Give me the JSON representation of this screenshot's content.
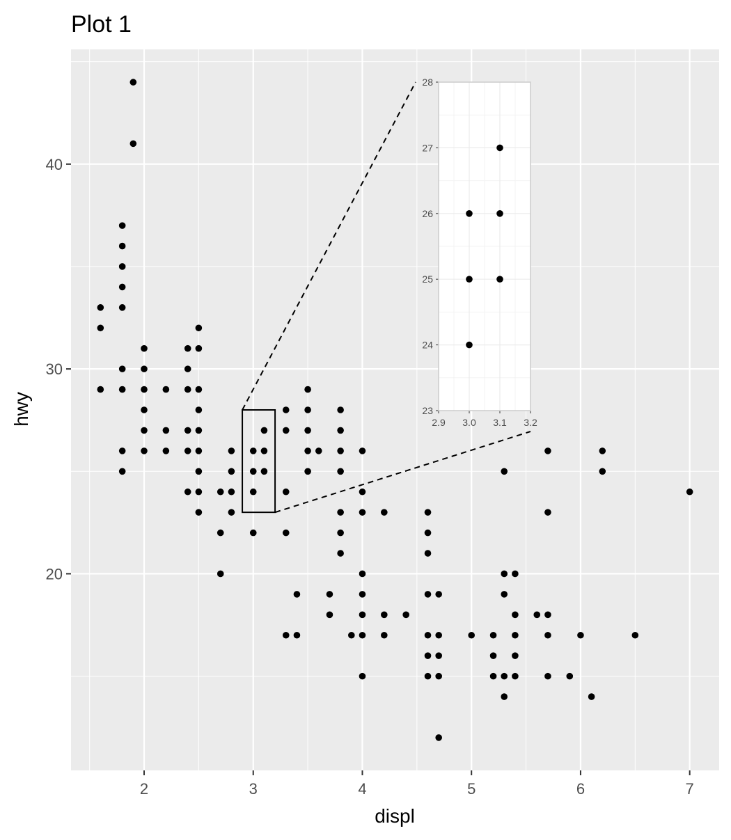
{
  "chart_data": {
    "type": "scatter",
    "title": "Plot 1",
    "xlabel": "displ",
    "ylabel": "hwy",
    "xlim": [
      1.33,
      7.27
    ],
    "ylim": [
      10.4,
      45.6
    ],
    "x_ticks": [
      2,
      3,
      4,
      5,
      6,
      7
    ],
    "y_ticks": [
      20,
      30,
      40
    ],
    "grid": true,
    "points": [
      [
        1.6,
        33
      ],
      [
        1.6,
        32
      ],
      [
        1.6,
        29
      ],
      [
        1.8,
        29
      ],
      [
        1.8,
        26
      ],
      [
        1.8,
        25
      ],
      [
        1.8,
        30
      ],
      [
        1.8,
        33
      ],
      [
        1.8,
        34
      ],
      [
        1.8,
        35
      ],
      [
        1.8,
        36
      ],
      [
        1.8,
        37
      ],
      [
        1.9,
        44
      ],
      [
        1.9,
        41
      ],
      [
        2.0,
        31
      ],
      [
        2.0,
        30
      ],
      [
        2.0,
        29
      ],
      [
        2.0,
        28
      ],
      [
        2.0,
        27
      ],
      [
        2.0,
        26
      ],
      [
        2.2,
        29
      ],
      [
        2.2,
        27
      ],
      [
        2.2,
        26
      ],
      [
        2.4,
        31
      ],
      [
        2.4,
        30
      ],
      [
        2.4,
        29
      ],
      [
        2.4,
        27
      ],
      [
        2.4,
        26
      ],
      [
        2.4,
        24
      ],
      [
        2.5,
        32
      ],
      [
        2.5,
        31
      ],
      [
        2.5,
        29
      ],
      [
        2.5,
        28
      ],
      [
        2.5,
        27
      ],
      [
        2.5,
        26
      ],
      [
        2.5,
        25
      ],
      [
        2.5,
        24
      ],
      [
        2.5,
        23
      ],
      [
        2.7,
        24
      ],
      [
        2.7,
        22
      ],
      [
        2.7,
        20
      ],
      [
        2.8,
        26
      ],
      [
        2.8,
        25
      ],
      [
        2.8,
        24
      ],
      [
        2.8,
        23
      ],
      [
        3.0,
        26
      ],
      [
        3.0,
        25
      ],
      [
        3.0,
        24
      ],
      [
        3.0,
        22
      ],
      [
        3.1,
        27
      ],
      [
        3.1,
        26
      ],
      [
        3.1,
        25
      ],
      [
        3.3,
        28
      ],
      [
        3.3,
        27
      ],
      [
        3.3,
        24
      ],
      [
        3.3,
        22
      ],
      [
        3.3,
        17
      ],
      [
        3.4,
        19
      ],
      [
        3.4,
        17
      ],
      [
        3.5,
        29
      ],
      [
        3.5,
        28
      ],
      [
        3.5,
        27
      ],
      [
        3.5,
        26
      ],
      [
        3.5,
        25
      ],
      [
        3.6,
        26
      ],
      [
        3.7,
        19
      ],
      [
        3.7,
        18
      ],
      [
        3.8,
        28
      ],
      [
        3.8,
        27
      ],
      [
        3.8,
        26
      ],
      [
        3.8,
        25
      ],
      [
        3.8,
        23
      ],
      [
        3.8,
        22
      ],
      [
        3.8,
        21
      ],
      [
        3.9,
        17
      ],
      [
        4.0,
        26
      ],
      [
        4.0,
        24
      ],
      [
        4.0,
        23
      ],
      [
        4.0,
        20
      ],
      [
        4.0,
        19
      ],
      [
        4.0,
        18
      ],
      [
        4.0,
        17
      ],
      [
        4.0,
        15
      ],
      [
        4.2,
        23
      ],
      [
        4.2,
        18
      ],
      [
        4.2,
        17
      ],
      [
        4.4,
        18
      ],
      [
        4.6,
        23
      ],
      [
        4.6,
        22
      ],
      [
        4.6,
        21
      ],
      [
        4.6,
        19
      ],
      [
        4.6,
        17
      ],
      [
        4.6,
        16
      ],
      [
        4.6,
        15
      ],
      [
        4.7,
        19
      ],
      [
        4.7,
        17
      ],
      [
        4.7,
        16
      ],
      [
        4.7,
        15
      ],
      [
        4.7,
        12
      ],
      [
        5.0,
        17
      ],
      [
        5.2,
        17
      ],
      [
        5.2,
        16
      ],
      [
        5.2,
        15
      ],
      [
        5.3,
        25
      ],
      [
        5.3,
        20
      ],
      [
        5.3,
        19
      ],
      [
        5.3,
        15
      ],
      [
        5.3,
        14
      ],
      [
        5.4,
        20
      ],
      [
        5.4,
        18
      ],
      [
        5.4,
        17
      ],
      [
        5.4,
        16
      ],
      [
        5.4,
        15
      ],
      [
        5.6,
        18
      ],
      [
        5.7,
        26
      ],
      [
        5.7,
        23
      ],
      [
        5.7,
        18
      ],
      [
        5.7,
        17
      ],
      [
        5.7,
        15
      ],
      [
        5.9,
        15
      ],
      [
        6.0,
        17
      ],
      [
        6.1,
        14
      ],
      [
        6.2,
        26
      ],
      [
        6.2,
        25
      ],
      [
        6.5,
        17
      ],
      [
        7.0,
        24
      ]
    ],
    "zoom_region": {
      "xlim": [
        2.9,
        3.2
      ],
      "ylim": [
        23,
        28
      ]
    },
    "inset": {
      "x_ticks": [
        "2.9",
        "3.0",
        "3.1",
        "3.2"
      ],
      "y_ticks": [
        "23",
        "24",
        "25",
        "26",
        "27",
        "28"
      ],
      "xlim": [
        2.9,
        3.2
      ],
      "ylim": [
        23,
        28
      ]
    },
    "colors": {
      "panel_background": "#ebebeb",
      "grid_line": "#ffffff",
      "point": "#000000",
      "inset_background": "#ffffff",
      "inset_grid": "#ebebeb",
      "inset_border": "#cccccc"
    }
  }
}
